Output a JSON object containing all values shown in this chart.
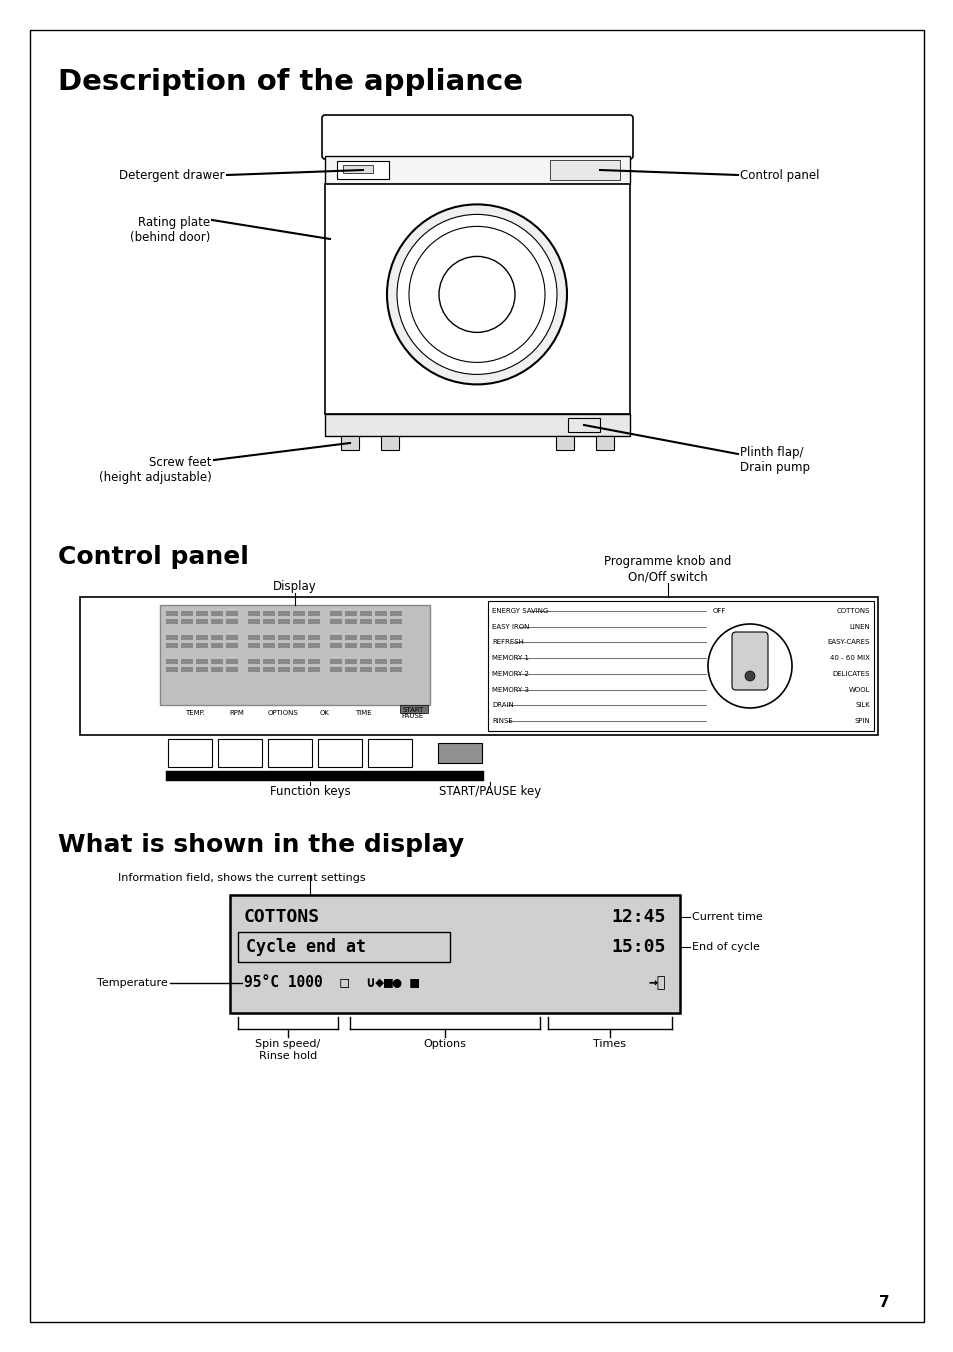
{
  "page_bg": "#ffffff",
  "title1": "Description of the appliance",
  "title2": "Control panel",
  "title3": "What is shown in the display",
  "display_label": "Display",
  "prog_knob_label": "Programme knob and\nOn/Off switch",
  "function_keys_label": "Function keys",
  "start_pause_label": "START/PAUSE key",
  "info_field_label": "Information field, shows the current settings",
  "current_time_label": "Current time",
  "end_of_cycle_label": "End of cycle",
  "temperature_label": "Temperature",
  "spin_speed_label": "Spin speed/\nRinse hold",
  "options_label": "Options",
  "times_label": "Times",
  "page_number": "7",
  "detergent_drawer_label": "Detergent drawer",
  "rating_plate_label": "Rating plate\n(behind door)",
  "control_panel_label": "Control panel",
  "screw_feet_label": "Screw feet\n(height adjustable)",
  "plinth_flap_label": "Plinth flap/\nDrain pump"
}
